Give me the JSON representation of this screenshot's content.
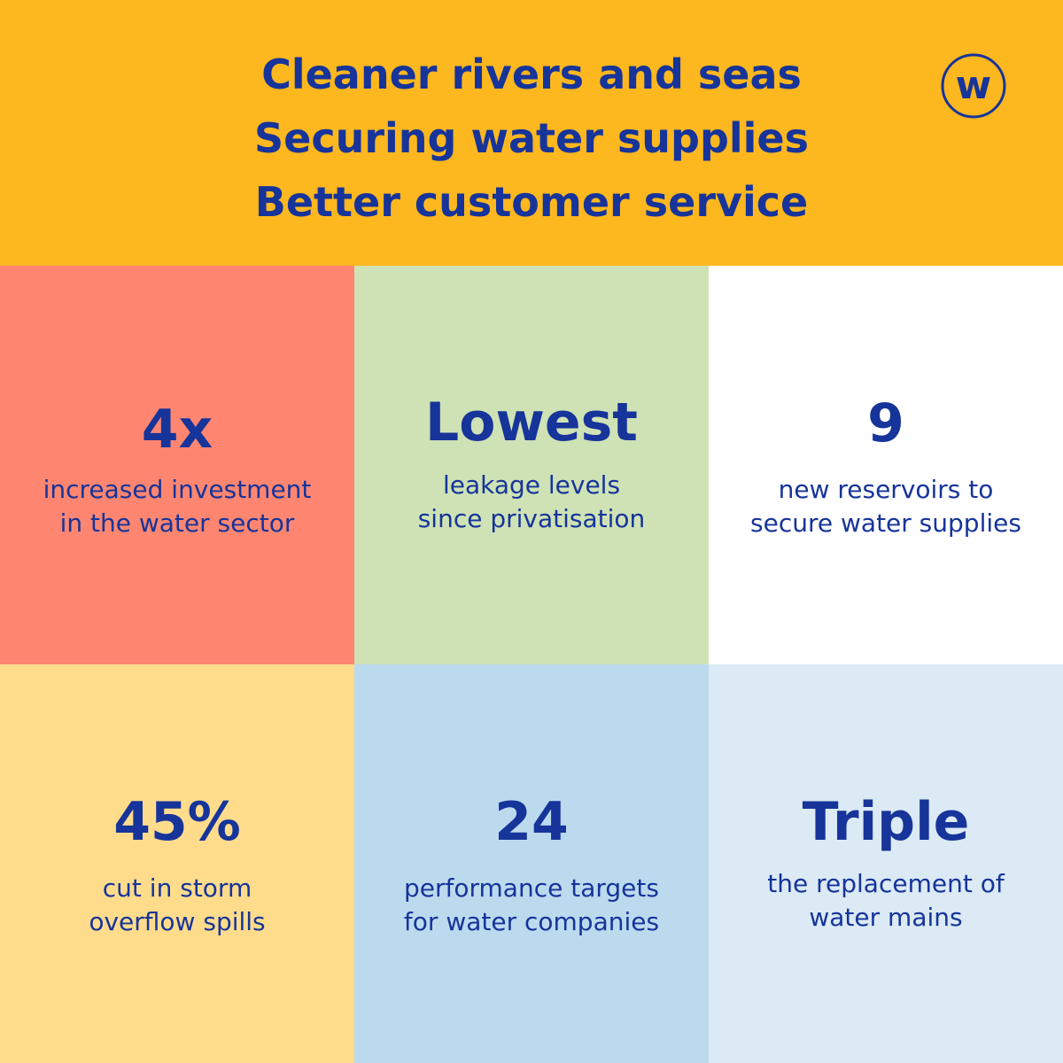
{
  "header": {
    "lines": [
      "Cleaner rivers and seas",
      "Securing water supplies",
      "Better customer service"
    ],
    "logo_letter": "w",
    "background": "#fdb71f",
    "text_color": "#16349a"
  },
  "stats": [
    {
      "headline": "4x",
      "lines": [
        "increased investment",
        "in the water sector"
      ],
      "background": "#fe8671"
    },
    {
      "headline": "Lowest",
      "lines": [
        "leakage levels",
        "since privatisation"
      ],
      "background": "#cfe2b5"
    },
    {
      "headline": "9",
      "lines": [
        "new reservoirs to",
        "secure water supplies"
      ],
      "background": "#ffffff"
    },
    {
      "headline": "45%",
      "lines": [
        "cut in storm",
        "overflow spills"
      ],
      "background": "#fedc8c"
    },
    {
      "headline": "24",
      "lines": [
        "performance targets",
        "for water companies"
      ],
      "background": "#bcdaee"
    },
    {
      "headline": "Triple",
      "lines": [
        "the replacement of",
        "water mains"
      ],
      "background": "#dbeaf4"
    }
  ]
}
